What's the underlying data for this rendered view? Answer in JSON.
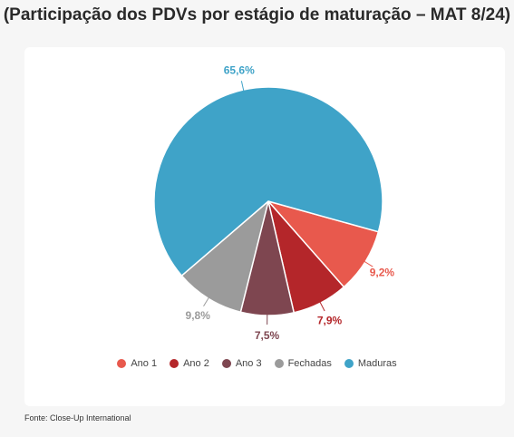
{
  "title": "(Participação dos PDVs por estágio de maturação – MAT 8/24)",
  "source": "Fonte: Close-Up International",
  "chart_data": {
    "type": "pie",
    "title": "(Participação dos PDVs por estágio de maturação – MAT 8/24)",
    "legend_position": "bottom",
    "slices": [
      {
        "name": "Ano 1",
        "value": 9.2,
        "label": "9,2%",
        "color": "#e8594d"
      },
      {
        "name": "Ano 2",
        "value": 7.9,
        "label": "7,9%",
        "color": "#b4262a"
      },
      {
        "name": "Ano 3",
        "value": 7.5,
        "label": "7,5%",
        "color": "#7e4650"
      },
      {
        "name": "Fechadas",
        "value": 9.8,
        "label": "9,8%",
        "color": "#9b9b9b"
      },
      {
        "name": "Maduras",
        "value": 65.6,
        "label": "65,6%",
        "color": "#3fa3c8"
      }
    ]
  }
}
